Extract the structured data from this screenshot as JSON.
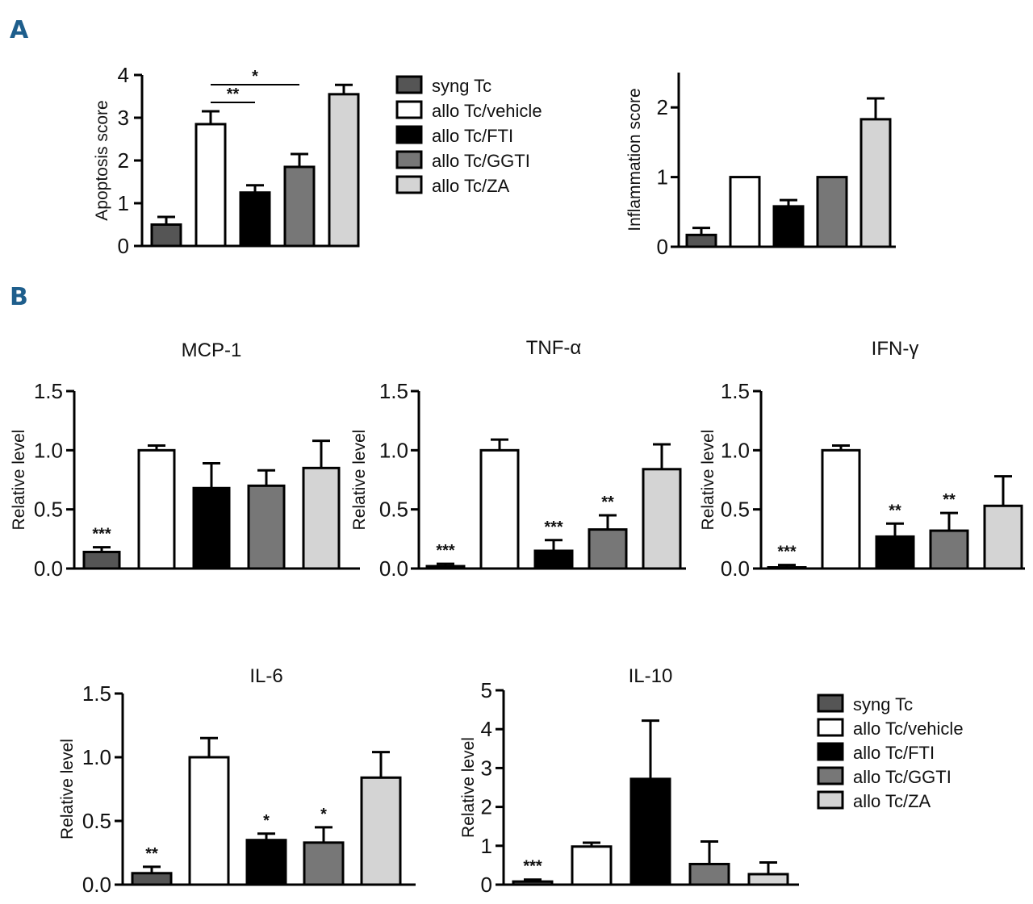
{
  "panel_labels": [
    "A",
    "B"
  ],
  "colors": {
    "syng Tc": "#555555",
    "allo Tc/vehicle": "#ffffff",
    "allo Tc/FTI": "#000000",
    "allo Tc/GGTI": "#777777",
    "allo Tc/ZA": "#d4d4d4"
  },
  "legend": [
    "syng Tc",
    "allo Tc/vehicle",
    "allo Tc/FTI",
    "allo Tc/GGTI",
    "allo Tc/ZA"
  ],
  "chart_data": [
    {
      "type": "bar",
      "panel": "A",
      "title": "",
      "xlabel": "",
      "ylabel": "Apoptosis score",
      "categories": [
        "syng Tc",
        "allo Tc/vehicle",
        "allo Tc/FTI",
        "allo Tc/GGTI",
        "allo Tc/ZA"
      ],
      "values": [
        0.5,
        2.85,
        1.25,
        1.85,
        3.55
      ],
      "errors": [
        0.18,
        0.3,
        0.17,
        0.3,
        0.22
      ],
      "ylim": [
        0,
        4
      ],
      "yticks": [
        "0",
        "1",
        "2",
        "3",
        "4"
      ],
      "significance": [
        "",
        "",
        "",
        "",
        ""
      ],
      "brackets": [
        {
          "from": 1,
          "to": 2,
          "label": "**"
        },
        {
          "from": 1,
          "to": 3,
          "label": "*"
        }
      ]
    },
    {
      "type": "bar",
      "panel": "A",
      "title": "",
      "xlabel": "",
      "ylabel": "Inflammation score",
      "categories": [
        "syng Tc",
        "allo Tc/vehicle",
        "allo Tc/FTI",
        "allo Tc/GGTI",
        "allo Tc/ZA"
      ],
      "values": [
        0.17,
        1.0,
        0.58,
        1.0,
        1.83
      ],
      "errors": [
        0.1,
        0,
        0.09,
        0,
        0.3
      ],
      "ylim": [
        0,
        2.5
      ],
      "yticks": [
        "0",
        "1",
        "2"
      ],
      "significance": [
        "",
        "",
        "",
        "",
        ""
      ],
      "brackets": []
    },
    {
      "type": "bar",
      "panel": "B",
      "title": "MCP-1",
      "xlabel": "",
      "ylabel": "Relative level",
      "categories": [
        "syng Tc",
        "allo Tc/vehicle",
        "allo Tc/FTI",
        "allo Tc/GGTI",
        "allo Tc/ZA"
      ],
      "values": [
        0.14,
        1.0,
        0.68,
        0.7,
        0.85
      ],
      "errors": [
        0.04,
        0.04,
        0.21,
        0.13,
        0.23
      ],
      "ylim": [
        0,
        1.5
      ],
      "yticks": [
        "0.0",
        "0.5",
        "1.0",
        "1.5"
      ],
      "significance": [
        "***",
        "",
        "",
        "",
        ""
      ],
      "brackets": []
    },
    {
      "type": "bar",
      "panel": "B",
      "title": "TNF-α",
      "xlabel": "",
      "ylabel": "Relative level",
      "categories": [
        "syng Tc",
        "allo Tc/vehicle",
        "allo Tc/FTI",
        "allo Tc/GGTI",
        "allo Tc/ZA"
      ],
      "values": [
        0.02,
        1.0,
        0.15,
        0.33,
        0.84
      ],
      "errors": [
        0.02,
        0.09,
        0.09,
        0.12,
        0.21
      ],
      "ylim": [
        0,
        1.5
      ],
      "yticks": [
        "0.0",
        "0.5",
        "1.0",
        "1.5"
      ],
      "significance": [
        "***",
        "",
        "***",
        "**",
        ""
      ],
      "brackets": []
    },
    {
      "type": "bar",
      "panel": "B",
      "title": "IFN-γ",
      "xlabel": "",
      "ylabel": "Relative level",
      "categories": [
        "syng Tc",
        "allo Tc/vehicle",
        "allo Tc/FTI",
        "allo Tc/GGTI",
        "allo Tc/ZA"
      ],
      "values": [
        0.01,
        1.0,
        0.27,
        0.32,
        0.53
      ],
      "errors": [
        0.02,
        0.04,
        0.11,
        0.15,
        0.25
      ],
      "ylim": [
        0,
        1.5
      ],
      "yticks": [
        "0.0",
        "0.5",
        "1.0",
        "1.5"
      ],
      "significance": [
        "***",
        "",
        "**",
        "**",
        ""
      ],
      "brackets": []
    },
    {
      "type": "bar",
      "panel": "B",
      "title": "IL-6",
      "xlabel": "",
      "ylabel": "Relative level",
      "categories": [
        "syng Tc",
        "allo Tc/vehicle",
        "allo Tc/FTI",
        "allo Tc/GGTI",
        "allo Tc/ZA"
      ],
      "values": [
        0.09,
        1.0,
        0.35,
        0.33,
        0.84
      ],
      "errors": [
        0.05,
        0.15,
        0.05,
        0.12,
        0.2
      ],
      "ylim": [
        0,
        1.5
      ],
      "yticks": [
        "0.0",
        "0.5",
        "1.0",
        "1.5"
      ],
      "significance": [
        "**",
        "",
        "*",
        "*",
        ""
      ],
      "brackets": []
    },
    {
      "type": "bar",
      "panel": "B",
      "title": "IL-10",
      "xlabel": "",
      "ylabel": "Relative level",
      "categories": [
        "syng Tc",
        "allo Tc/vehicle",
        "allo Tc/FTI",
        "allo Tc/GGTI",
        "allo Tc/ZA"
      ],
      "values": [
        0.08,
        0.98,
        2.72,
        0.53,
        0.27
      ],
      "errors": [
        0.05,
        0.1,
        1.5,
        0.58,
        0.3
      ],
      "ylim": [
        0,
        5
      ],
      "yticks": [
        "0",
        "1",
        "2",
        "3",
        "4",
        "5"
      ],
      "significance": [
        "***",
        "",
        "",
        "",
        ""
      ],
      "brackets": []
    }
  ]
}
